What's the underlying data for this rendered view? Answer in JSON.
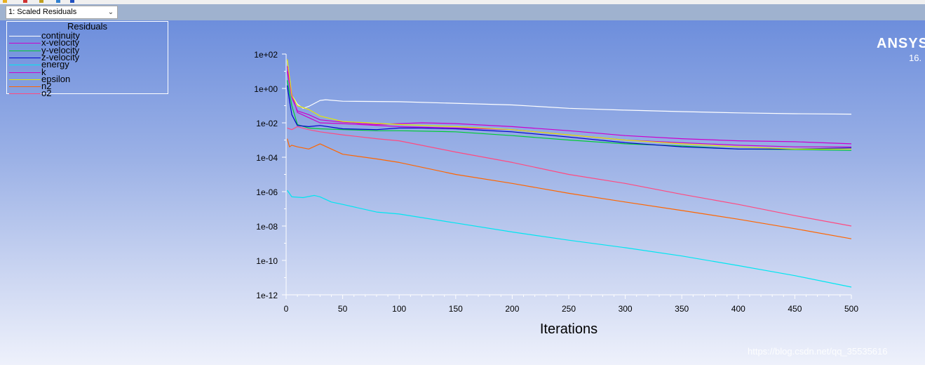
{
  "toolbar": {
    "window_select": {
      "value": "1: Scaled Residuals",
      "arrow": "chevron-down-icon"
    }
  },
  "branding": {
    "name": "ANSYS",
    "version": "16."
  },
  "watermark": "https://blog.csdn.net/qq_35535616",
  "colors": {
    "background_top": "#6d8edc",
    "background_bottom": "#eef1fb",
    "axis": "#ffffff"
  },
  "chart_data": {
    "type": "line",
    "title": "",
    "xlabel": "Iterations",
    "ylabel": "",
    "y_scale": "log",
    "xlim": [
      0,
      500
    ],
    "ylim": [
      1e-12,
      100
    ],
    "x_ticks": [
      0,
      50,
      100,
      150,
      200,
      250,
      300,
      350,
      400,
      450,
      500
    ],
    "x_tick_labels": [
      "0",
      "50",
      "100",
      "150",
      "200",
      "250",
      "300",
      "350",
      "400",
      "450",
      "500"
    ],
    "y_ticks": [
      100.0,
      1,
      0.01,
      0.0001,
      1e-06,
      1e-08,
      1e-10,
      1e-12
    ],
    "y_tick_labels": [
      "1e+02",
      "1e+00",
      "1e-02",
      "1e-04",
      "1e-06",
      "1e-08",
      "1e-10",
      "1e-12"
    ],
    "legend": {
      "title": "Residuals",
      "placement": "top-left"
    },
    "series": [
      {
        "name": "continuity",
        "color": "#ffffff",
        "x": [
          1,
          5,
          10,
          15,
          20,
          30,
          35,
          50,
          100,
          200,
          250,
          300,
          350,
          400,
          450,
          500
        ],
        "y": [
          40,
          0.4,
          0.12,
          0.07,
          0.09,
          0.2,
          0.22,
          0.18,
          0.17,
          0.11,
          0.07,
          0.055,
          0.045,
          0.038,
          0.034,
          0.032
        ]
      },
      {
        "name": "x-velocity",
        "color": "#cc00cc",
        "x": [
          1,
          5,
          10,
          20,
          30,
          50,
          80,
          100,
          120,
          150,
          200,
          250,
          300,
          350,
          400,
          450,
          500
        ],
        "y": [
          10,
          0.3,
          0.05,
          0.03,
          0.015,
          0.011,
          0.008,
          0.009,
          0.01,
          0.009,
          0.006,
          0.0035,
          0.0018,
          0.0012,
          0.0009,
          0.0008,
          0.0006
        ]
      },
      {
        "name": "y-velocity",
        "color": "#00cc33",
        "x": [
          1,
          5,
          10,
          20,
          30,
          50,
          80,
          100,
          150,
          200,
          250,
          300,
          350,
          400,
          450,
          500
        ],
        "y": [
          3,
          0.1,
          0.008,
          0.005,
          0.0045,
          0.004,
          0.0035,
          0.0035,
          0.003,
          0.0018,
          0.001,
          0.0006,
          0.00045,
          0.0003,
          0.00028,
          0.00025
        ]
      },
      {
        "name": "z-velocity",
        "color": "#0000cc",
        "x": [
          1,
          3,
          5,
          10,
          20,
          30,
          50,
          80,
          100,
          120,
          150,
          200,
          250,
          300,
          350,
          400,
          450,
          500
        ],
        "y": [
          1.5,
          0.2,
          0.03,
          0.007,
          0.006,
          0.007,
          0.0045,
          0.004,
          0.005,
          0.005,
          0.0045,
          0.003,
          0.0015,
          0.0007,
          0.0004,
          0.0003,
          0.0003,
          0.00035
        ]
      },
      {
        "name": "energy",
        "color": "#00e6f0",
        "x": [
          1,
          5,
          15,
          25,
          30,
          40,
          50,
          80,
          100,
          150,
          200,
          250,
          300,
          350,
          400,
          450,
          500
        ],
        "y": [
          1.2e-06,
          5e-07,
          4.5e-07,
          6e-07,
          5e-07,
          2.5e-07,
          1.8e-07,
          6.5e-08,
          5e-08,
          1.5e-08,
          4.5e-09,
          1.5e-09,
          5.5e-10,
          1.8e-10,
          5e-11,
          1.3e-11,
          2.8e-12
        ]
      },
      {
        "name": "k",
        "color": "#cc00cc",
        "x": [
          1,
          5,
          10,
          20,
          30,
          50,
          100,
          150,
          200,
          250,
          300,
          350,
          400,
          450,
          500
        ],
        "y": [
          20,
          0.5,
          0.04,
          0.02,
          0.01,
          0.009,
          0.006,
          0.005,
          0.004,
          0.002,
          0.001,
          0.0007,
          0.0005,
          0.0004,
          0.0004
        ]
      },
      {
        "name": "epsilon",
        "color": "#e6e600",
        "x": [
          1,
          5,
          10,
          20,
          30,
          50,
          100,
          150,
          200,
          250,
          300,
          350,
          400,
          450,
          500
        ],
        "y": [
          50,
          0.4,
          0.1,
          0.06,
          0.025,
          0.012,
          0.008,
          0.006,
          0.004,
          0.002,
          0.001,
          0.0006,
          0.0004,
          0.0003,
          0.0003
        ]
      },
      {
        "name": "n2",
        "color": "#ff6600",
        "x": [
          1,
          3,
          5,
          10,
          20,
          30,
          40,
          50,
          80,
          100,
          150,
          200,
          250,
          300,
          350,
          400,
          450,
          500
        ],
        "y": [
          0.0012,
          0.0004,
          0.0005,
          0.0004,
          0.0003,
          0.0006,
          0.0003,
          0.00015,
          8e-05,
          5e-05,
          1e-05,
          3e-06,
          8e-07,
          2.5e-07,
          8e-08,
          2.5e-08,
          7e-09,
          1.8e-09
        ]
      },
      {
        "name": "o2",
        "color": "#ff4a80",
        "x": [
          1,
          5,
          10,
          20,
          30,
          50,
          80,
          100,
          150,
          200,
          250,
          300,
          350,
          400,
          450,
          500
        ],
        "y": [
          0.005,
          0.004,
          0.006,
          0.004,
          0.003,
          0.002,
          0.0012,
          0.0009,
          0.0002,
          5e-05,
          1e-05,
          3e-06,
          7e-07,
          1.8e-07,
          4e-08,
          1e-08
        ]
      }
    ]
  }
}
